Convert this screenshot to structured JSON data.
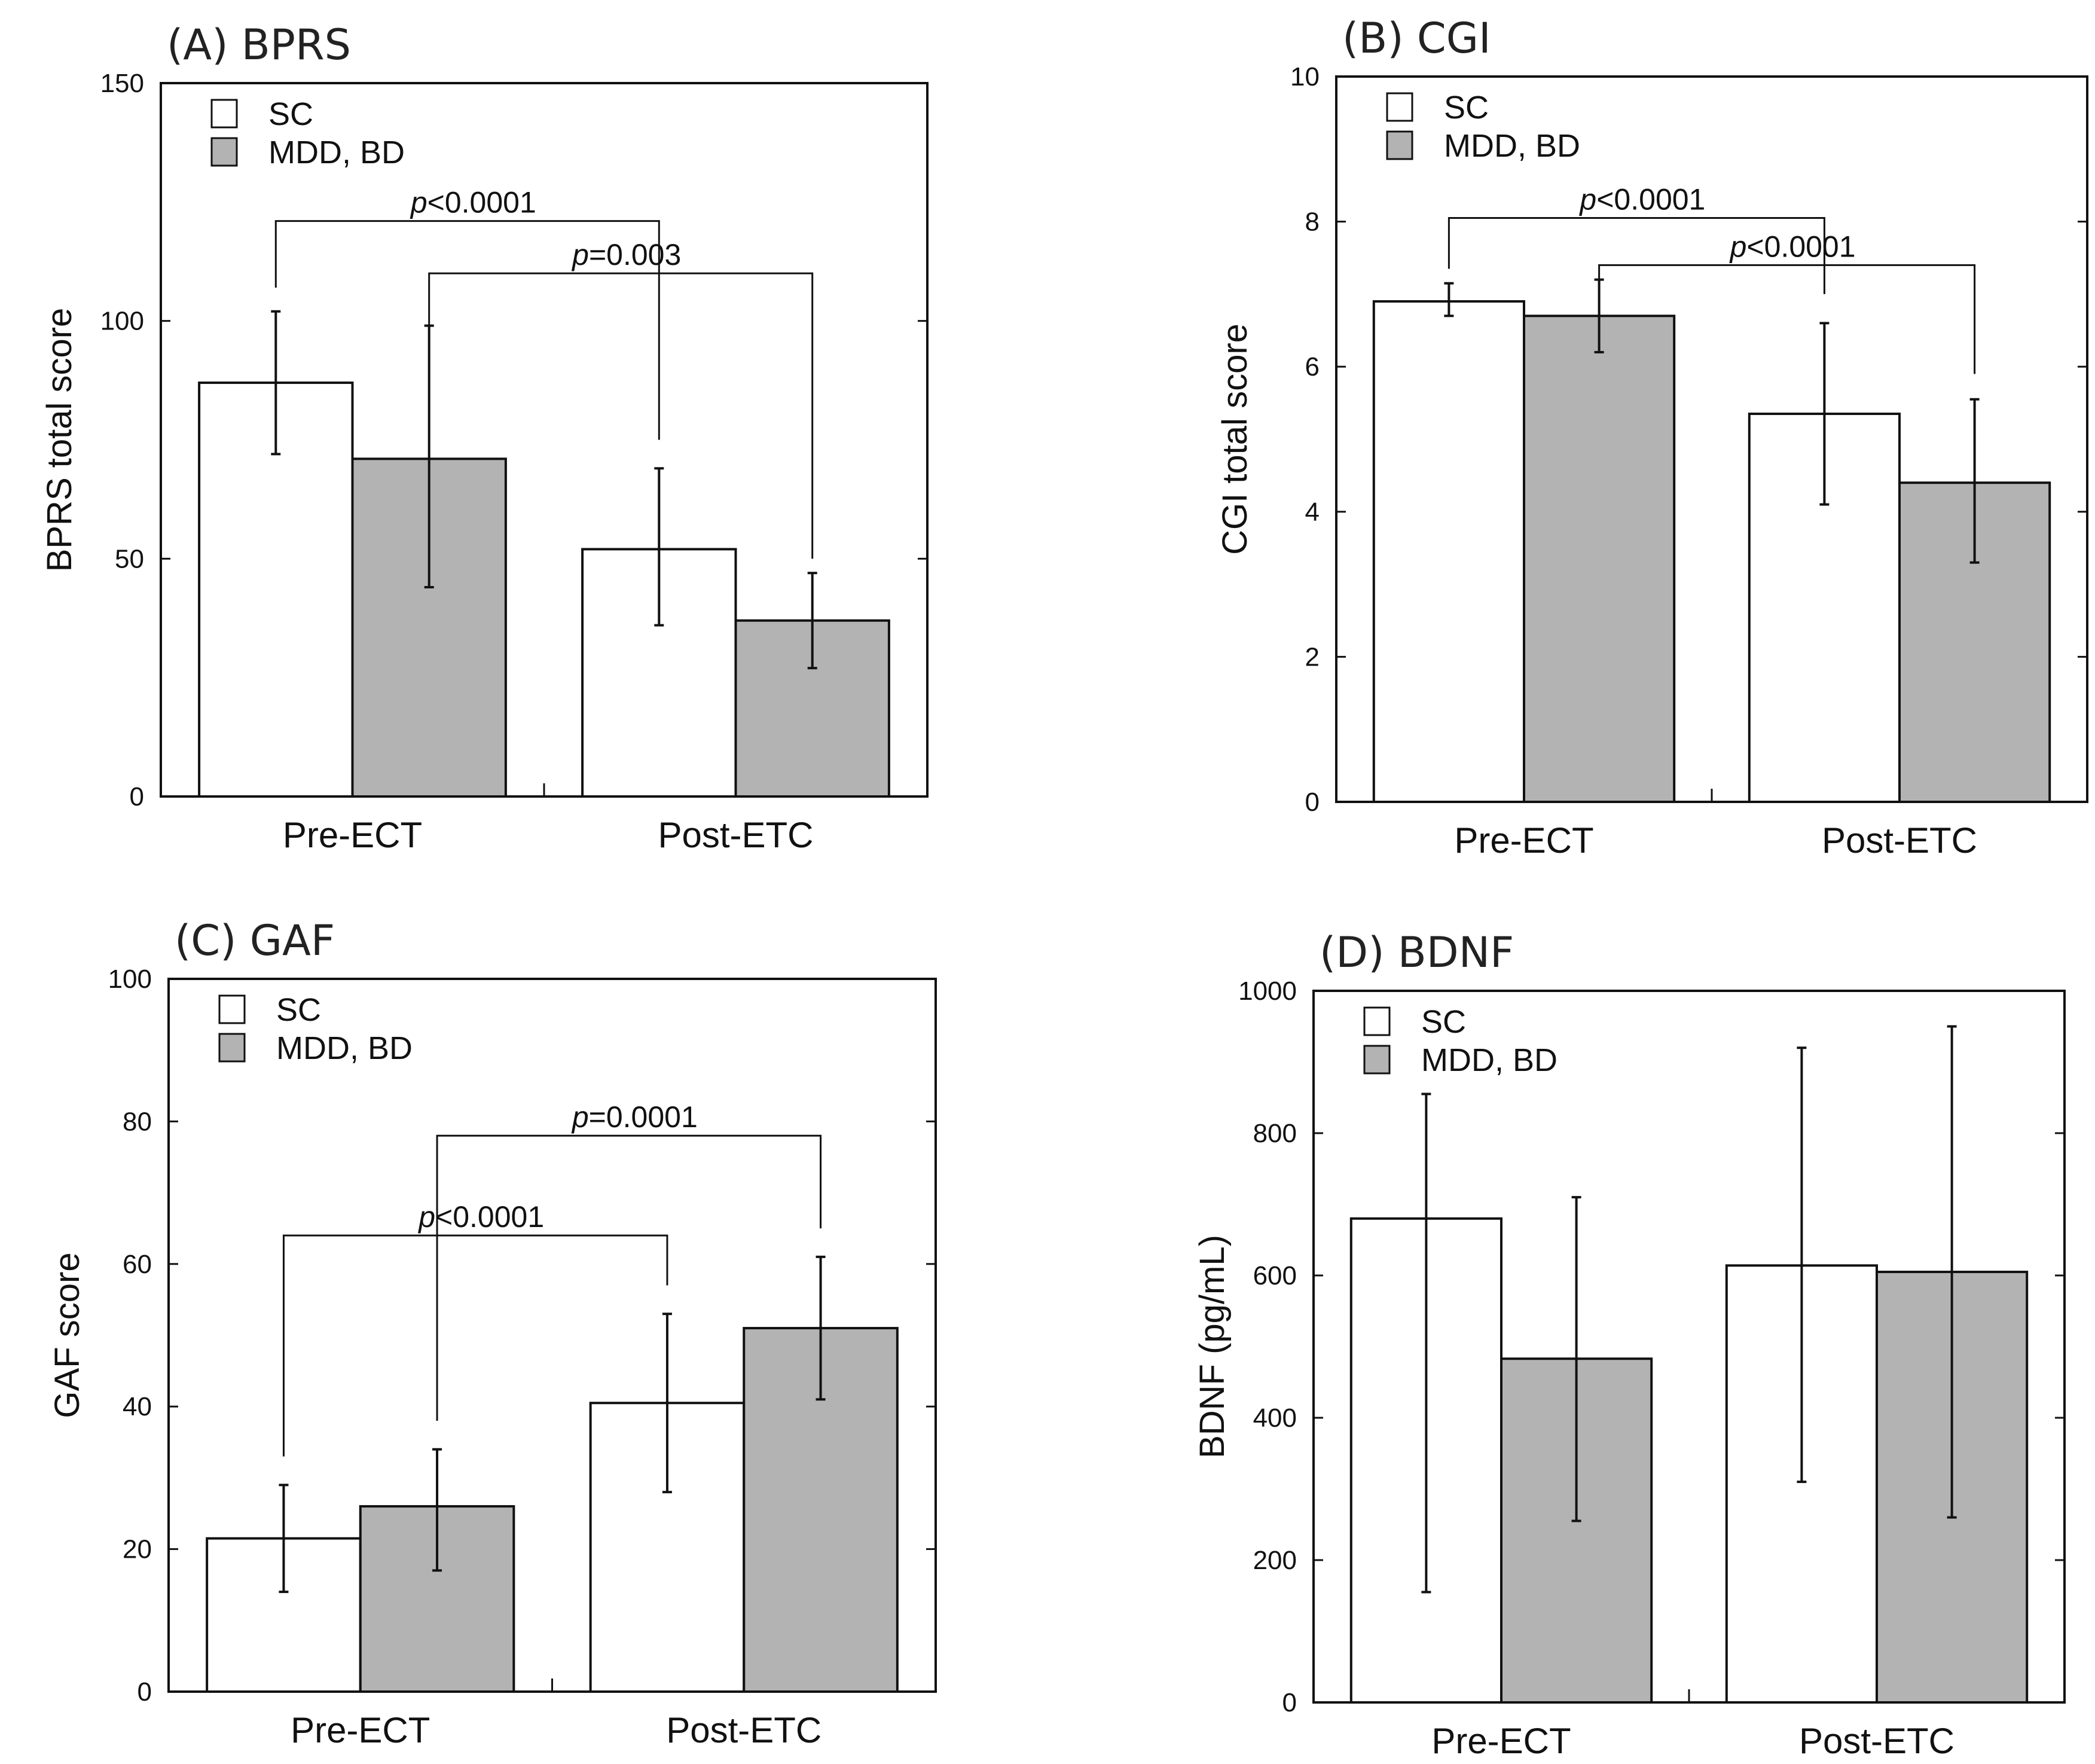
{
  "colors": {
    "sc": "#ffffff",
    "mdd": "#b3b3b3",
    "stroke": "#111111"
  },
  "chart_data": [
    {
      "type": "bar",
      "title": "(A) BPRS",
      "ylabel": "BPRS total score",
      "xlabel": "",
      "ylim": [
        0,
        150
      ],
      "yticks": [
        0,
        50,
        100,
        150
      ],
      "categories": [
        "Pre-ECT",
        "Post-ETC"
      ],
      "legend": {
        "position": "top-left",
        "entries": [
          "SC",
          "MDD, BD"
        ]
      },
      "series": [
        {
          "name": "SC",
          "values": [
            87,
            52
          ],
          "err_low": [
            72,
            36
          ],
          "err_high": [
            102,
            69
          ]
        },
        {
          "name": "MDD, BD",
          "values": [
            71,
            37
          ],
          "err_low": [
            44,
            27
          ],
          "err_high": [
            99,
            47
          ]
        }
      ],
      "annotations": [
        {
          "p_prefix": "p",
          "p_rest": "<0.0001",
          "from": [
            0,
            0
          ],
          "to": [
            1,
            0
          ],
          "level": 121,
          "drop_from": 107,
          "drop_to": 75
        },
        {
          "p_prefix": "p",
          "p_rest": "=0.003",
          "from": [
            0,
            1
          ],
          "to": [
            1,
            1
          ],
          "level": 110,
          "drop_from": 99,
          "drop_to": 50
        }
      ]
    },
    {
      "type": "bar",
      "title": "(B) CGI",
      "ylabel": "CGI total score",
      "xlabel": "",
      "ylim": [
        0,
        10
      ],
      "yticks": [
        0,
        2,
        4,
        6,
        8,
        10
      ],
      "categories": [
        "Pre-ECT",
        "Post-ETC"
      ],
      "legend": {
        "position": "top-left",
        "entries": [
          "SC",
          "MDD, BD"
        ]
      },
      "series": [
        {
          "name": "SC",
          "values": [
            6.9,
            5.35
          ],
          "err_low": [
            6.7,
            4.1
          ],
          "err_high": [
            7.15,
            6.6
          ]
        },
        {
          "name": "MDD, BD",
          "values": [
            6.7,
            4.4
          ],
          "err_low": [
            6.2,
            3.3
          ],
          "err_high": [
            7.2,
            5.55
          ]
        }
      ],
      "annotations": [
        {
          "p_prefix": "p",
          "p_rest": "<0.0001",
          "from": [
            0,
            0
          ],
          "to": [
            1,
            0
          ],
          "level": 8.05,
          "drop_from": 7.35,
          "drop_to": 7.0
        },
        {
          "p_prefix": "p",
          "p_rest": "<0.0001",
          "from": [
            0,
            1
          ],
          "to": [
            1,
            1
          ],
          "level": 7.4,
          "drop_from": 7.2,
          "drop_to": 5.9
        }
      ]
    },
    {
      "type": "bar",
      "title": "(C) GAF",
      "ylabel": "GAF score",
      "xlabel": "",
      "ylim": [
        0,
        100
      ],
      "yticks": [
        0,
        20,
        40,
        60,
        80,
        100
      ],
      "categories": [
        "Pre-ECT",
        "Post-ETC"
      ],
      "legend": {
        "position": "top-left",
        "entries": [
          "SC",
          "MDD, BD"
        ]
      },
      "series": [
        {
          "name": "SC",
          "values": [
            21.5,
            40.5
          ],
          "err_low": [
            14,
            28
          ],
          "err_high": [
            29,
            53
          ]
        },
        {
          "name": "MDD, BD",
          "values": [
            26,
            51
          ],
          "err_low": [
            17,
            41
          ],
          "err_high": [
            34,
            61
          ]
        }
      ],
      "annotations": [
        {
          "p_prefix": "p",
          "p_rest": "<0.0001",
          "from": [
            0,
            0
          ],
          "to": [
            1,
            0
          ],
          "level": 64,
          "drop_from": 33,
          "drop_to": 57
        },
        {
          "p_prefix": "p",
          "p_rest": "=0.0001",
          "from": [
            0,
            1
          ],
          "to": [
            1,
            1
          ],
          "level": 78,
          "drop_from": 38,
          "drop_to": 65
        }
      ]
    },
    {
      "type": "bar",
      "title": "(D) BDNF",
      "ylabel": "BDNF (pg/mL)",
      "xlabel": "",
      "ylim": [
        0,
        1000
      ],
      "yticks": [
        0,
        200,
        400,
        600,
        800,
        1000
      ],
      "categories": [
        "Pre-ECT",
        "Post-ETC"
      ],
      "legend": {
        "position": "top-left",
        "entries": [
          "SC",
          "MDD, BD"
        ]
      },
      "series": [
        {
          "name": "SC",
          "values": [
            680,
            614
          ],
          "err_low": [
            155,
            310
          ],
          "err_high": [
            855,
            920
          ]
        },
        {
          "name": "MDD, BD",
          "values": [
            483,
            605
          ],
          "err_low": [
            255,
            260
          ],
          "err_high": [
            710,
            950
          ]
        }
      ],
      "annotations": []
    }
  ]
}
